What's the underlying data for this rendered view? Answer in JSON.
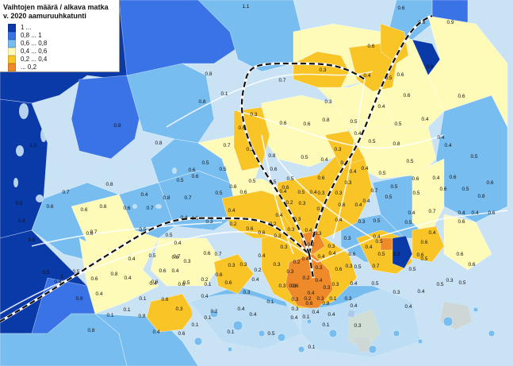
{
  "legend": {
    "title_line1": "Vaihtojen määrä / alkava matka",
    "title_line2": "v. 2020 aamuruuhkatunti",
    "items": [
      {
        "label": "1 ...",
        "color": "#0a3aa8"
      },
      {
        "label": "0,8 ... 1",
        "color": "#3a73e6"
      },
      {
        "label": "0,6 ... 0,8",
        "color": "#78bdf0"
      },
      {
        "label": "0,4 ... 0,6",
        "color": "#fefab8"
      },
      {
        "label": "0,2 ... 0,4",
        "color": "#f8c426"
      },
      {
        "label": "... 0,2",
        "color": "#ee8a2a"
      }
    ]
  },
  "colors": {
    "sea": "#c9e3f5",
    "railway": "#111111",
    "road": "#ffffff",
    "zone_label": "#111111"
  },
  "zone_labels": [
    "1.1",
    "1.2",
    "1.1",
    "0.9",
    "0.8",
    "0.8",
    "0.8",
    "0.9",
    "0.8",
    "0.7",
    "1.2",
    "1",
    "0.9",
    "0.8",
    "0.6",
    "0.9",
    "0.6",
    "0.6",
    "0.8",
    "0.7",
    "0.6",
    "0.5",
    "0.8",
    "0.7",
    "0.5",
    "0.6",
    "0.6",
    "0.6",
    "0.7",
    "0.5",
    "0.7",
    "0.6",
    "0.6",
    "0.4",
    "0.2",
    "0.6",
    "0.4",
    "0.5",
    "0.3",
    "0.4",
    "0.6",
    "0.4",
    "0.3",
    "0.4",
    "0.4",
    "0.6",
    "0.5",
    "0.6",
    "0.5",
    "0.6",
    "0.6",
    "0.4",
    "0.4",
    "0.6",
    "0.4",
    "0.3",
    "0.2",
    "0.3",
    "0.4",
    "0.6",
    "0.3",
    "0.4",
    "0.5",
    "0.4",
    "0.6",
    "0.5",
    "0.6",
    "0.5",
    "0.7",
    "0.6",
    "0.4",
    "0.5",
    "0.5",
    "0.5",
    "0.6",
    "0.6",
    "0.4",
    "0.5",
    "0.4",
    "0.4",
    "0.4",
    "0.3",
    "0.4",
    "0.3",
    "0.3",
    "0.3",
    "0.3",
    "0.4",
    "0.3",
    "0.3",
    "0.3",
    "0.3",
    "0.4",
    "0.5",
    "0.2",
    "0.4",
    "0.4",
    "0.3",
    "0.6",
    "0.3",
    "0.4",
    "0.3",
    "0.2",
    "0.3",
    "0.5",
    "0.6",
    "0.5",
    "0.7",
    "0.6",
    "0.5",
    "0.7",
    "0.6",
    "0.4",
    "0.6",
    "0.5",
    "0.4",
    "0.4",
    "0.2",
    "0.3",
    "0.4",
    "0.5",
    "0.3",
    "0.2",
    "0.2",
    "0.4",
    "0.3",
    "0.4",
    "0.4",
    "0.3",
    "0.6",
    "0.4",
    "0.3",
    "0.3",
    "0.5",
    "0.6",
    "0.7",
    "0.5",
    "0.3",
    "0.5",
    "0.3",
    "0.4",
    "0.3",
    "0.5",
    "0.4",
    "0.5",
    "0.5",
    "0.4",
    "0.4",
    "0.3",
    "0.3",
    "0.2",
    "0.3",
    "0.4",
    "0.3",
    "0.4",
    "0.2",
    "0.1",
    "0.3",
    "0.4",
    "0.1",
    "0.1",
    "0.3",
    "0.1",
    "0.1",
    "0.6",
    "0.3",
    "0.3",
    "0.6",
    "0.8",
    "0.3",
    "0.1",
    "0.2",
    "0.6",
    "0.4",
    "0.5",
    "0.4",
    "0.1",
    "0.1",
    "0.4",
    "0.4",
    "0.3",
    "0.6",
    "0.4",
    "0.4",
    "0.6",
    "0.5",
    "0.1",
    "0.6",
    "0.3",
    "0.1",
    "0.6",
    "0.4",
    "0.8",
    "0.1",
    "0.1",
    "0.4",
    "0.8",
    "0.6",
    "0.5",
    "0.4",
    "0.5",
    "0.6",
    "0.3",
    "0.5",
    "0.6",
    "0.7",
    "0.6",
    "0.6",
    "0.6",
    "0.4",
    "0.8",
    "0.5",
    "0.6",
    "0.5",
    "0.5",
    "0.6",
    "0.6",
    "0.5",
    "0.5",
    "0.4",
    "0.4",
    "0.5",
    "0.6",
    "0.8",
    "0.5",
    "0.6",
    "0.6",
    "0.5",
    "0.7",
    "0.4",
    "0.6",
    "0.8",
    "0.5",
    "0.4",
    "0.8",
    "0.3",
    "0.1"
  ]
}
